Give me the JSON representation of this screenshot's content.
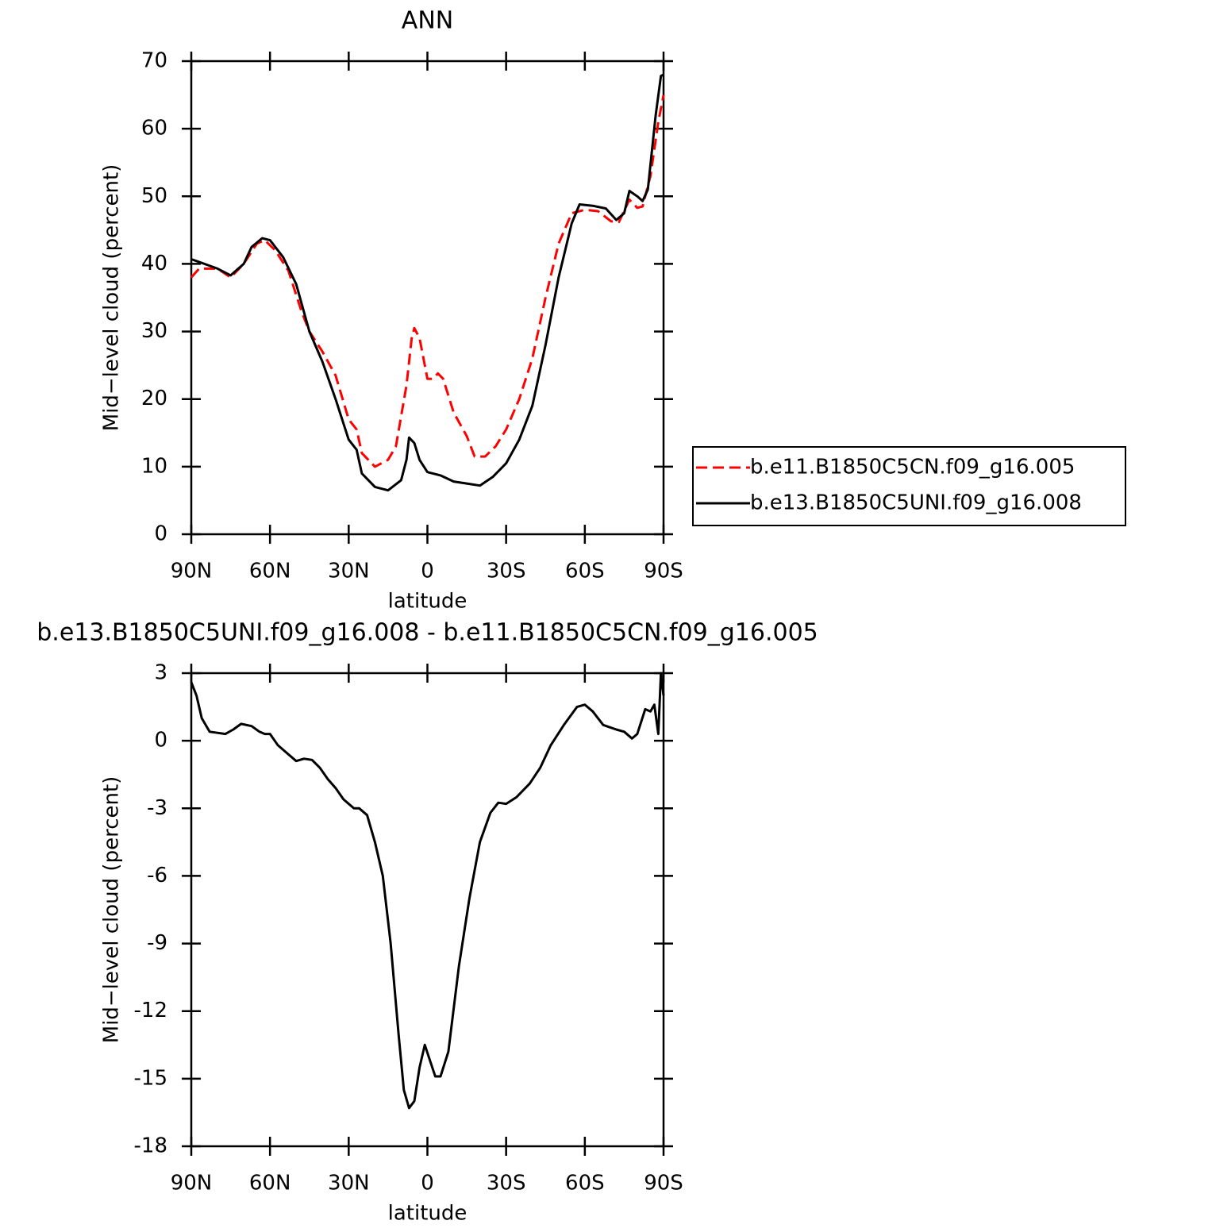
{
  "chart_data": [
    {
      "type": "line",
      "title": "ANN",
      "xlabel": "latitude",
      "ylabel": "Mid−level cloud (percent)",
      "xlim": [
        90,
        -90
      ],
      "xticks": [
        {
          "value": 90,
          "label": "90N"
        },
        {
          "value": 60,
          "label": "60N"
        },
        {
          "value": 30,
          "label": "30N"
        },
        0,
        {
          "value": -30,
          "label": "30S"
        },
        {
          "value": -60,
          "label": "60S"
        },
        {
          "value": -90,
          "label": "90S"
        }
      ],
      "ylim": [
        0,
        70
      ],
      "yticks": [
        0,
        10,
        20,
        30,
        40,
        50,
        60,
        70
      ],
      "legend": "right",
      "series": [
        {
          "name": "b.e11.B1850C5CN.f09_g16.005",
          "color": "#ff0000",
          "dashed": true,
          "x": [
            90,
            87,
            80,
            75,
            70,
            65,
            62,
            58,
            53,
            48,
            45,
            40,
            35,
            30,
            27,
            25,
            20,
            15,
            12,
            8,
            6,
            5,
            3,
            0,
            -2,
            -4,
            -6,
            -10,
            -15,
            -18,
            -22,
            -26,
            -30,
            -35,
            -40,
            -45,
            -50,
            -55,
            -60,
            -65,
            -70,
            -73,
            -77,
            -80,
            -82,
            -85,
            -88,
            -90
          ],
          "values": [
            38,
            39.3,
            39.3,
            38,
            40,
            43,
            43.5,
            42,
            39,
            33,
            30,
            27,
            23.5,
            17,
            15.5,
            12,
            10,
            11,
            13,
            22,
            29,
            30.5,
            29,
            23,
            23,
            23.8,
            23,
            18,
            14.5,
            11.5,
            11.5,
            13,
            15.5,
            20,
            26,
            35,
            43,
            47.5,
            48,
            47.8,
            46.3,
            46.2,
            49.5,
            48.3,
            48.5,
            53,
            61,
            65
          ]
        },
        {
          "name": "b.e13.B1850C5UNI.f09_g16.008",
          "color": "#000000",
          "dashed": false,
          "x": [
            90,
            85,
            80,
            75,
            70,
            67,
            63,
            60,
            55,
            50,
            45,
            40,
            35,
            30,
            27,
            25,
            20,
            15,
            10,
            8,
            7,
            5,
            3,
            0,
            -5,
            -10,
            -15,
            -20,
            -25,
            -30,
            -35,
            -40,
            -45,
            -50,
            -55,
            -58,
            -63,
            -68,
            -72,
            -75,
            -77,
            -80,
            -82,
            -84,
            -87,
            -89,
            -90
          ],
          "values": [
            40.7,
            40,
            39.3,
            38.3,
            40,
            42.5,
            43.8,
            43.5,
            41,
            37,
            30,
            25.5,
            20,
            14,
            12.5,
            9,
            7,
            6.5,
            8,
            11,
            14.3,
            13.5,
            11,
            9.2,
            8.7,
            7.8,
            7.5,
            7.2,
            8.5,
            10.5,
            14,
            19,
            28,
            38,
            46,
            48.8,
            48.6,
            48.2,
            46.5,
            47.5,
            50.8,
            50,
            49.3,
            51,
            62,
            67.8,
            68
          ]
        }
      ]
    },
    {
      "type": "line",
      "title": "b.e13.B1850C5UNI.f09_g16.008 - b.e11.B1850C5CN.f09_g16.005",
      "xlabel": "latitude",
      "ylabel": "Mid−level cloud (percent)",
      "xlim": [
        90,
        -90
      ],
      "xticks": [
        {
          "value": 90,
          "label": "90N"
        },
        {
          "value": 60,
          "label": "60N"
        },
        {
          "value": 30,
          "label": "30N"
        },
        0,
        {
          "value": -30,
          "label": "30S"
        },
        {
          "value": -60,
          "label": "60S"
        },
        {
          "value": -90,
          "label": "90S"
        }
      ],
      "ylim": [
        -18,
        3
      ],
      "yticks": [
        3,
        0,
        -3,
        -6,
        -9,
        -12,
        -15,
        -18
      ],
      "series": [
        {
          "color": "#000000",
          "dashed": false,
          "x": [
            90,
            88,
            86,
            83,
            80,
            77,
            74,
            71,
            67,
            64,
            62,
            60,
            57,
            53,
            50,
            47,
            44,
            41,
            38,
            35,
            32,
            28,
            26,
            23,
            20,
            17,
            14,
            11,
            9,
            7,
            5,
            3,
            1,
            -1,
            -3,
            -5,
            -8,
            -12,
            -16,
            -20,
            -24,
            -27,
            -30,
            -34,
            -39,
            -43,
            -47,
            -52,
            -57,
            -60,
            -63,
            -67,
            -72,
            -75,
            -78,
            -80,
            -83,
            -85,
            -86.5,
            -88,
            -89,
            -90
          ],
          "values": [
            2.6,
            2,
            1,
            0.4,
            0.35,
            0.3,
            0.5,
            0.75,
            0.65,
            0.4,
            0.3,
            0.3,
            -0.2,
            -0.6,
            -0.9,
            -0.8,
            -0.85,
            -1.2,
            -1.7,
            -2.1,
            -2.6,
            -3,
            -3,
            -3.3,
            -4.5,
            -6,
            -9,
            -13,
            -15.5,
            -16.3,
            -16,
            -14.5,
            -13.5,
            -14.2,
            -14.9,
            -14.9,
            -13.8,
            -10,
            -7,
            -4.5,
            -3.2,
            -2.75,
            -2.8,
            -2.5,
            -1.9,
            -1.2,
            -0.2,
            0.7,
            1.5,
            1.6,
            1.3,
            0.7,
            0.5,
            0.4,
            0.1,
            0.3,
            1.4,
            1.3,
            1.6,
            0.3,
            3,
            2
          ]
        }
      ]
    }
  ]
}
